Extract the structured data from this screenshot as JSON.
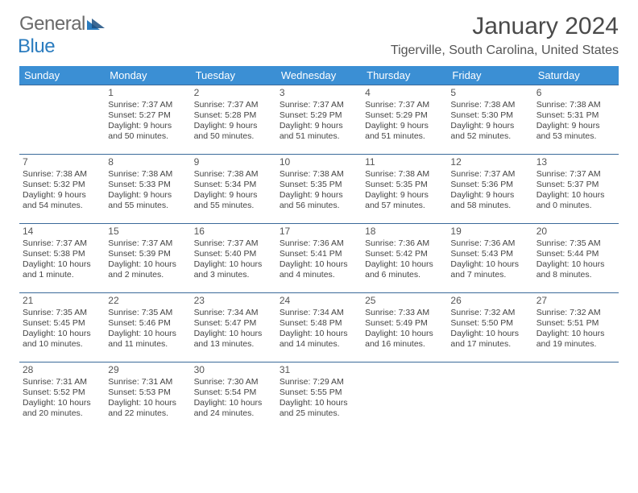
{
  "logo": {
    "general": "General",
    "blue": "Blue"
  },
  "title": "January 2024",
  "location": "Tigerville, South Carolina, United States",
  "colors": {
    "header_bg": "#3b8fd4",
    "header_fg": "#ffffff",
    "cell_border": "#3b6a9a",
    "text": "#444444",
    "logo_blue": "#2b7cbf"
  },
  "dayNames": [
    "Sunday",
    "Monday",
    "Tuesday",
    "Wednesday",
    "Thursday",
    "Friday",
    "Saturday"
  ],
  "weeks": [
    [
      null,
      {
        "n": "1",
        "sr": "7:37 AM",
        "ss": "5:27 PM",
        "dl": "9 hours and 50 minutes."
      },
      {
        "n": "2",
        "sr": "7:37 AM",
        "ss": "5:28 PM",
        "dl": "9 hours and 50 minutes."
      },
      {
        "n": "3",
        "sr": "7:37 AM",
        "ss": "5:29 PM",
        "dl": "9 hours and 51 minutes."
      },
      {
        "n": "4",
        "sr": "7:37 AM",
        "ss": "5:29 PM",
        "dl": "9 hours and 51 minutes."
      },
      {
        "n": "5",
        "sr": "7:38 AM",
        "ss": "5:30 PM",
        "dl": "9 hours and 52 minutes."
      },
      {
        "n": "6",
        "sr": "7:38 AM",
        "ss": "5:31 PM",
        "dl": "9 hours and 53 minutes."
      }
    ],
    [
      {
        "n": "7",
        "sr": "7:38 AM",
        "ss": "5:32 PM",
        "dl": "9 hours and 54 minutes."
      },
      {
        "n": "8",
        "sr": "7:38 AM",
        "ss": "5:33 PM",
        "dl": "9 hours and 55 minutes."
      },
      {
        "n": "9",
        "sr": "7:38 AM",
        "ss": "5:34 PM",
        "dl": "9 hours and 55 minutes."
      },
      {
        "n": "10",
        "sr": "7:38 AM",
        "ss": "5:35 PM",
        "dl": "9 hours and 56 minutes."
      },
      {
        "n": "11",
        "sr": "7:38 AM",
        "ss": "5:35 PM",
        "dl": "9 hours and 57 minutes."
      },
      {
        "n": "12",
        "sr": "7:37 AM",
        "ss": "5:36 PM",
        "dl": "9 hours and 58 minutes."
      },
      {
        "n": "13",
        "sr": "7:37 AM",
        "ss": "5:37 PM",
        "dl": "10 hours and 0 minutes."
      }
    ],
    [
      {
        "n": "14",
        "sr": "7:37 AM",
        "ss": "5:38 PM",
        "dl": "10 hours and 1 minute."
      },
      {
        "n": "15",
        "sr": "7:37 AM",
        "ss": "5:39 PM",
        "dl": "10 hours and 2 minutes."
      },
      {
        "n": "16",
        "sr": "7:37 AM",
        "ss": "5:40 PM",
        "dl": "10 hours and 3 minutes."
      },
      {
        "n": "17",
        "sr": "7:36 AM",
        "ss": "5:41 PM",
        "dl": "10 hours and 4 minutes."
      },
      {
        "n": "18",
        "sr": "7:36 AM",
        "ss": "5:42 PM",
        "dl": "10 hours and 6 minutes."
      },
      {
        "n": "19",
        "sr": "7:36 AM",
        "ss": "5:43 PM",
        "dl": "10 hours and 7 minutes."
      },
      {
        "n": "20",
        "sr": "7:35 AM",
        "ss": "5:44 PM",
        "dl": "10 hours and 8 minutes."
      }
    ],
    [
      {
        "n": "21",
        "sr": "7:35 AM",
        "ss": "5:45 PM",
        "dl": "10 hours and 10 minutes."
      },
      {
        "n": "22",
        "sr": "7:35 AM",
        "ss": "5:46 PM",
        "dl": "10 hours and 11 minutes."
      },
      {
        "n": "23",
        "sr": "7:34 AM",
        "ss": "5:47 PM",
        "dl": "10 hours and 13 minutes."
      },
      {
        "n": "24",
        "sr": "7:34 AM",
        "ss": "5:48 PM",
        "dl": "10 hours and 14 minutes."
      },
      {
        "n": "25",
        "sr": "7:33 AM",
        "ss": "5:49 PM",
        "dl": "10 hours and 16 minutes."
      },
      {
        "n": "26",
        "sr": "7:32 AM",
        "ss": "5:50 PM",
        "dl": "10 hours and 17 minutes."
      },
      {
        "n": "27",
        "sr": "7:32 AM",
        "ss": "5:51 PM",
        "dl": "10 hours and 19 minutes."
      }
    ],
    [
      {
        "n": "28",
        "sr": "7:31 AM",
        "ss": "5:52 PM",
        "dl": "10 hours and 20 minutes."
      },
      {
        "n": "29",
        "sr": "7:31 AM",
        "ss": "5:53 PM",
        "dl": "10 hours and 22 minutes."
      },
      {
        "n": "30",
        "sr": "7:30 AM",
        "ss": "5:54 PM",
        "dl": "10 hours and 24 minutes."
      },
      {
        "n": "31",
        "sr": "7:29 AM",
        "ss": "5:55 PM",
        "dl": "10 hours and 25 minutes."
      },
      null,
      null,
      null
    ]
  ],
  "labels": {
    "sunrise": "Sunrise:",
    "sunset": "Sunset:",
    "daylight": "Daylight:"
  }
}
